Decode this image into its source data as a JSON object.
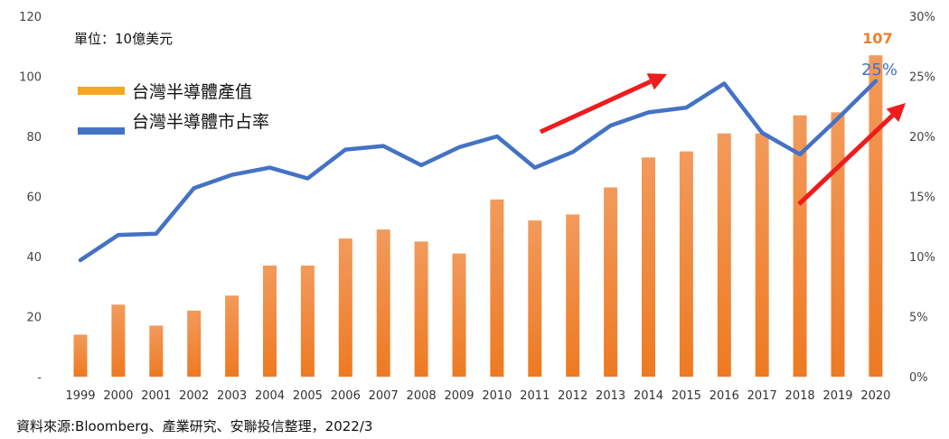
{
  "chart_data": {
    "type": "bar",
    "unit_label": "單位：10億美元",
    "categories": [
      "1999",
      "2000",
      "2001",
      "2002",
      "2003",
      "2004",
      "2005",
      "2006",
      "2007",
      "2008",
      "2009",
      "2010",
      "2011",
      "2012",
      "2013",
      "2014",
      "2015",
      "2016",
      "2017",
      "2018",
      "2019",
      "2020"
    ],
    "series": [
      {
        "name": "台灣半導體產值",
        "type": "bar",
        "axis": "left",
        "color": "#F07F2C",
        "values": [
          14,
          24,
          17,
          22,
          27,
          37,
          37,
          46,
          49,
          45,
          41,
          59,
          52,
          54,
          63,
          73,
          75,
          81,
          81,
          87,
          88,
          107
        ]
      },
      {
        "name": "台灣半導體市占率",
        "type": "line",
        "axis": "right",
        "color": "#4472C4",
        "values": [
          9.7,
          11.8,
          11.9,
          15.7,
          16.8,
          17.4,
          16.5,
          18.9,
          19.2,
          17.6,
          19.1,
          20.0,
          17.4,
          18.7,
          20.9,
          22.0,
          22.4,
          24.4,
          20.3,
          18.5,
          21.5,
          24.6
        ]
      }
    ],
    "ylim_left": [
      0,
      120
    ],
    "yticks_left": [
      "-",
      "20",
      "40",
      "60",
      "80",
      "100",
      "120"
    ],
    "ylim_right": [
      0,
      30
    ],
    "yticks_right": [
      "0%",
      "5%",
      "10%",
      "15%",
      "20%",
      "25%",
      "30%"
    ],
    "annotations": {
      "bar_label_2020": "107",
      "line_label_2020": "25%"
    },
    "legend": [
      "台灣半導體產值",
      "台灣半導體市占率"
    ],
    "legend_position": "top-left",
    "grid": false,
    "arrow_color": "#EE1C1C"
  },
  "source_note": "資料來源:Bloomberg、產業研究、安聯投信整理，2022/3"
}
